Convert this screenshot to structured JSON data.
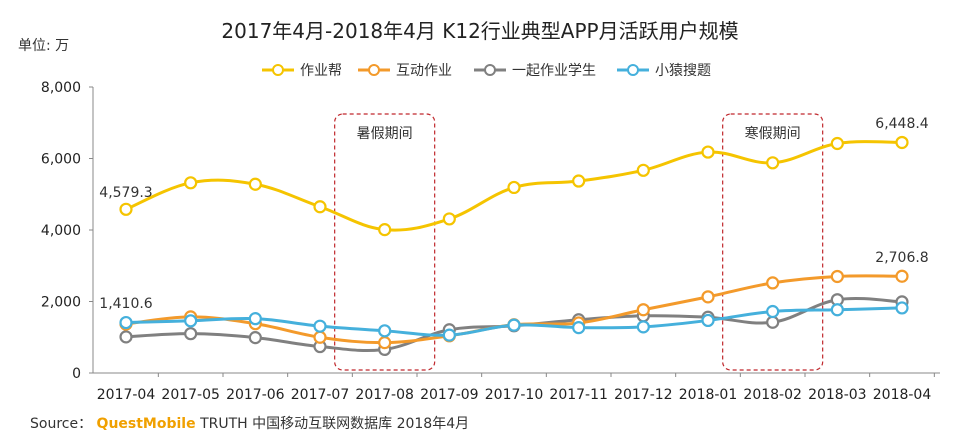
{
  "chart_data": {
    "type": "line",
    "title": "2017年4月-2018年4月 K12行业典型APP月活跃用户规模",
    "unit_label": "单位: 万",
    "categories": [
      "2017-04",
      "2017-05",
      "2017-06",
      "2017-07",
      "2017-08",
      "2017-09",
      "2017-10",
      "2017-11",
      "2017-12",
      "2018-01",
      "2018-02",
      "2018-03",
      "2018-04"
    ],
    "ylim": [
      0,
      8000
    ],
    "yticks": [
      "0",
      "2,000",
      "4,000",
      "6,000",
      "8,000"
    ],
    "ytick_values": [
      0,
      2000,
      4000,
      6000,
      8000
    ],
    "legend_position": "top",
    "grid": false,
    "series": [
      {
        "name": "作业帮",
        "color": "#f5c400",
        "values": [
          4579.3,
          5320,
          5280,
          4650,
          4010,
          4310,
          5190,
          5370,
          5670,
          6180,
          5880,
          6420,
          6448.4
        ]
      },
      {
        "name": "互动作业",
        "color": "#f39a2b",
        "values": [
          1370,
          1570,
          1380,
          1000,
          850,
          1040,
          1350,
          1400,
          1770,
          2130,
          2520,
          2700,
          2706.8
        ]
      },
      {
        "name": "一起作业学生",
        "color": "#808080",
        "values": [
          1010,
          1100,
          990,
          740,
          660,
          1210,
          1320,
          1490,
          1600,
          1560,
          1420,
          2050,
          1990
        ]
      },
      {
        "name": "小猿搜题",
        "color": "#45b0dc",
        "values": [
          1410.6,
          1460,
          1520,
          1310,
          1180,
          1060,
          1340,
          1270,
          1290,
          1470,
          1720,
          1770,
          1820
        ]
      }
    ],
    "data_labels": [
      {
        "series": 0,
        "index": 0,
        "text": "4,579.3"
      },
      {
        "series": 0,
        "index": 12,
        "text": "6,448.4"
      },
      {
        "series": 1,
        "index": 12,
        "text": "2,706.8"
      },
      {
        "series": 3,
        "index": 0,
        "text": "1,410.6"
      }
    ],
    "annotations": [
      {
        "text": "暑假期间",
        "category_index": 4
      },
      {
        "text": "寒假期间",
        "category_index": 10
      }
    ]
  },
  "source": {
    "prefix": "Source：",
    "brand": "QuestMobile",
    "rest": "TRUTH 中国移动互联网数据库 2018年4月"
  }
}
